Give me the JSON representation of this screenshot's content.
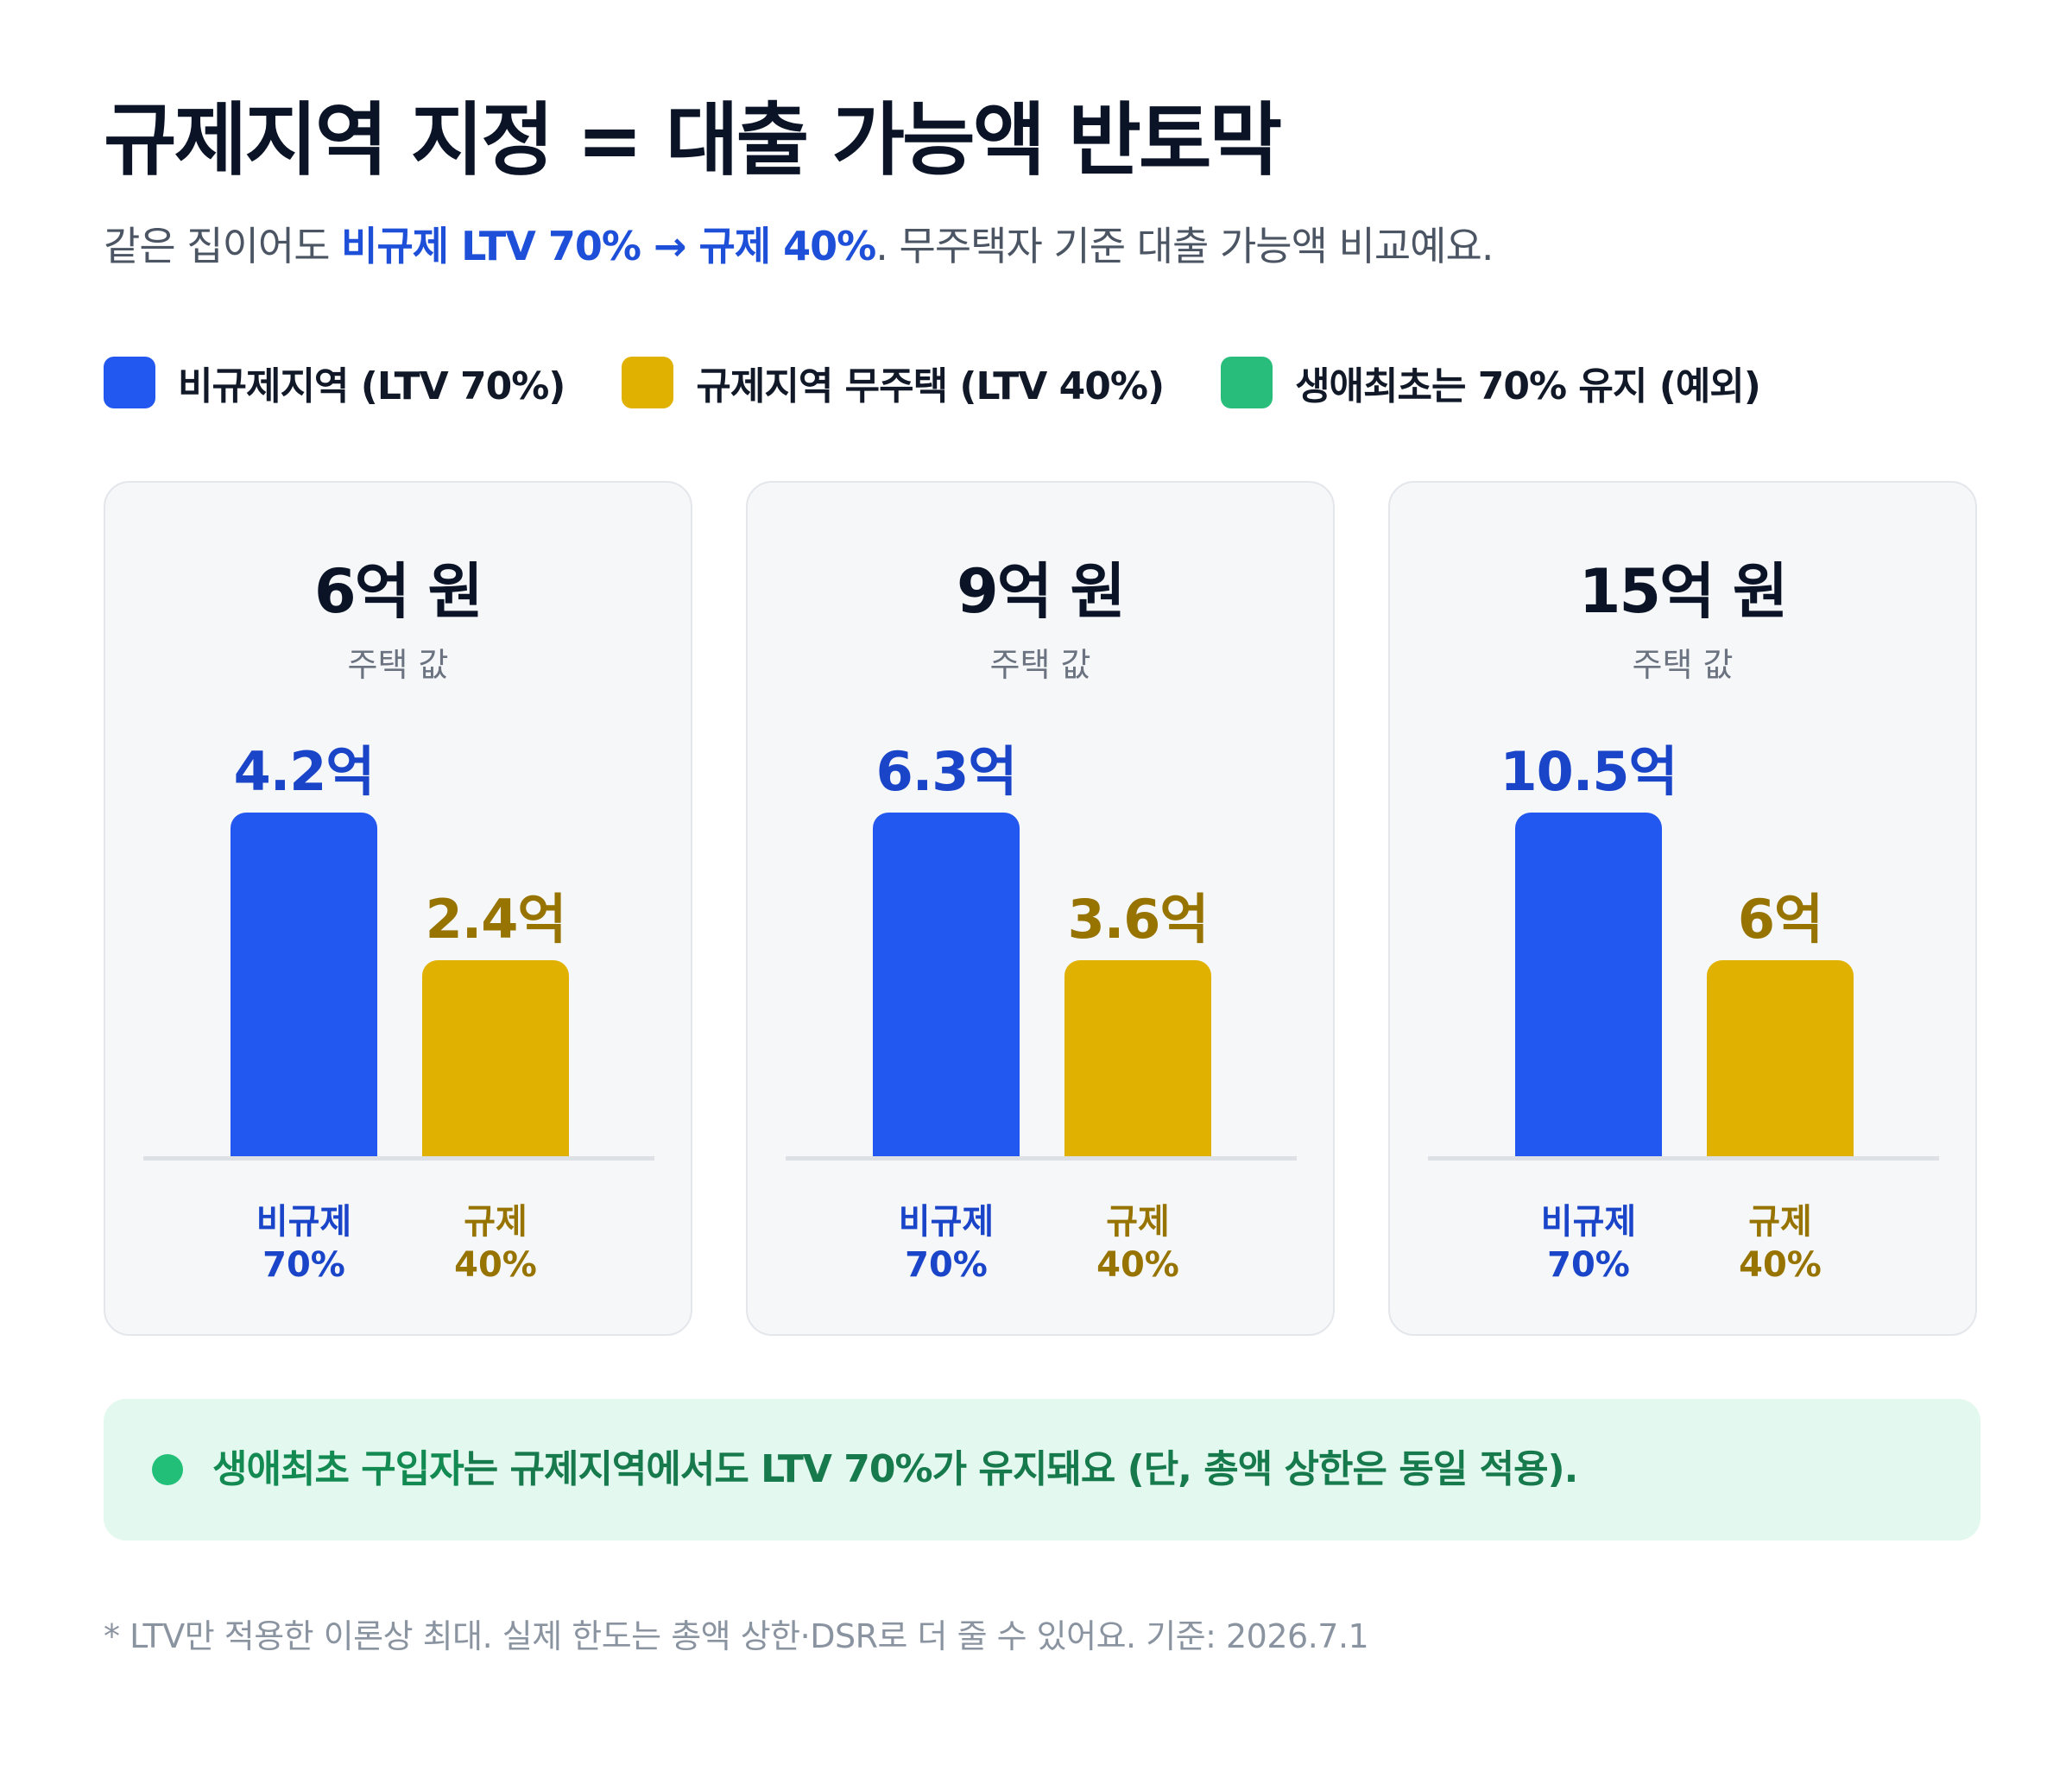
{
  "header": {
    "title": "규제지역 지정 = 대출 가능액 반토막",
    "subtitle_pre": "같은 집이어도 ",
    "subtitle_hl": "비규제 LTV 70% → 규제 40%",
    "subtitle_post": ". 무주택자 기준 대출 가능액 비교예요."
  },
  "legend": [
    {
      "label": "비규제지역 (LTV 70%)",
      "color": "#2257f0"
    },
    {
      "label": "규제지역 무주택 (LTV 40%)",
      "color": "#e0b100"
    },
    {
      "label": "생애최초는 70% 유지 (예외)",
      "color": "#28bd7a"
    }
  ],
  "colors": {
    "unregulated_bar": "#2257f0",
    "regulated_bar": "#e0b100",
    "unregulated_text": "#1a45c9",
    "regulated_text": "#977300"
  },
  "chart_data": {
    "type": "bar",
    "categories": [
      "비규제",
      "규제"
    ],
    "category_sublabels": [
      "70%",
      "40%"
    ],
    "panels": [
      {
        "title": "6억 원",
        "subtitle": "주택 값",
        "values": [
          4.2,
          2.4
        ],
        "value_labels": [
          "4.2억",
          "2.4억"
        ]
      },
      {
        "title": "9억 원",
        "subtitle": "주택 값",
        "values": [
          6.3,
          3.6
        ],
        "value_labels": [
          "6.3억",
          "3.6억"
        ]
      },
      {
        "title": "15억 원",
        "subtitle": "주택 값",
        "values": [
          10.5,
          6
        ],
        "value_labels": [
          "10.5억",
          "6억"
        ]
      }
    ],
    "scale": "each panel's bars are shown relative to that panel's own 비규제 value (70% vs 40%)"
  },
  "note": {
    "strong": "생애최초 구입자",
    "text": "는 규제지역에서도 LTV 70%가 유지돼요 (단, 총액 상한은 동일 적용)."
  },
  "footnote": "* LTV만 적용한 이론상 최대. 실제 한도는 총액 상한·DSR로 더 줄 수 있어요. 기준: 2026.7.1"
}
